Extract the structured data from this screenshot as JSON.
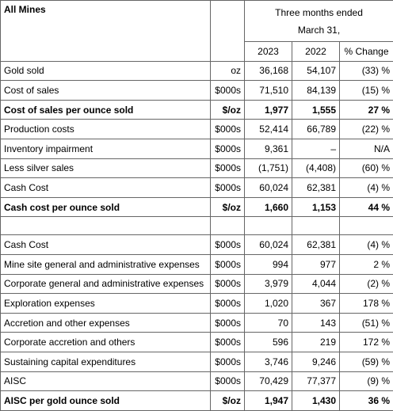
{
  "header": {
    "title": "All Mines",
    "period": "Three months ended",
    "period2": "March 31,",
    "columns": [
      "2023",
      "2022",
      "% Change"
    ]
  },
  "sections": [
    {
      "rows": [
        [
          "Gold sold",
          "oz",
          "36,168",
          "54,107",
          "(33) %"
        ],
        [
          "Cost of sales",
          "$000s",
          "71,510",
          "84,139",
          "(15) %"
        ],
        [
          "Cost of sales per ounce sold",
          "$/oz",
          "1,977",
          "1,555",
          "27 %"
        ],
        [
          "Production costs",
          "$000s",
          "52,414",
          "66,789",
          "(22) %"
        ],
        [
          "Inventory impairment",
          "$000s",
          "9,361",
          "–",
          "N/A"
        ],
        [
          "Less silver sales",
          "$000s",
          "(1,751)",
          "(4,408)",
          "(60) %"
        ],
        [
          "Cash Cost",
          "$000s",
          "60,024",
          "62,381",
          "(4) %"
        ],
        [
          "Cash cost per ounce sold",
          "$/oz",
          "1,660",
          "1,153",
          "44 %"
        ]
      ]
    },
    {
      "rows": [
        [
          "Cash Cost",
          "$000s",
          "60,024",
          "62,381",
          "(4) %"
        ],
        [
          "Mine site general and administrative expenses",
          "$000s",
          "994",
          "977",
          "2 %"
        ],
        [
          "Corporate general and administrative expenses",
          "$000s",
          "3,979",
          "4,044",
          "(2) %"
        ],
        [
          "Exploration expenses",
          "$000s",
          "1,020",
          "367",
          "178 %"
        ],
        [
          "Accretion and other expenses",
          "$000s",
          "70",
          "143",
          "(51) %"
        ],
        [
          "Corporate accretion and others",
          "$000s",
          "596",
          "219",
          "172 %"
        ],
        [
          "Sustaining capital expenditures",
          "$000s",
          "3,746",
          "9,246",
          "(59) %"
        ],
        [
          "AISC",
          "$000s",
          "70,429",
          "77,377",
          "(9) %"
        ],
        [
          "AISC per gold ounce sold",
          "$/oz",
          "1,947",
          "1,430",
          "36 %"
        ]
      ]
    }
  ]
}
